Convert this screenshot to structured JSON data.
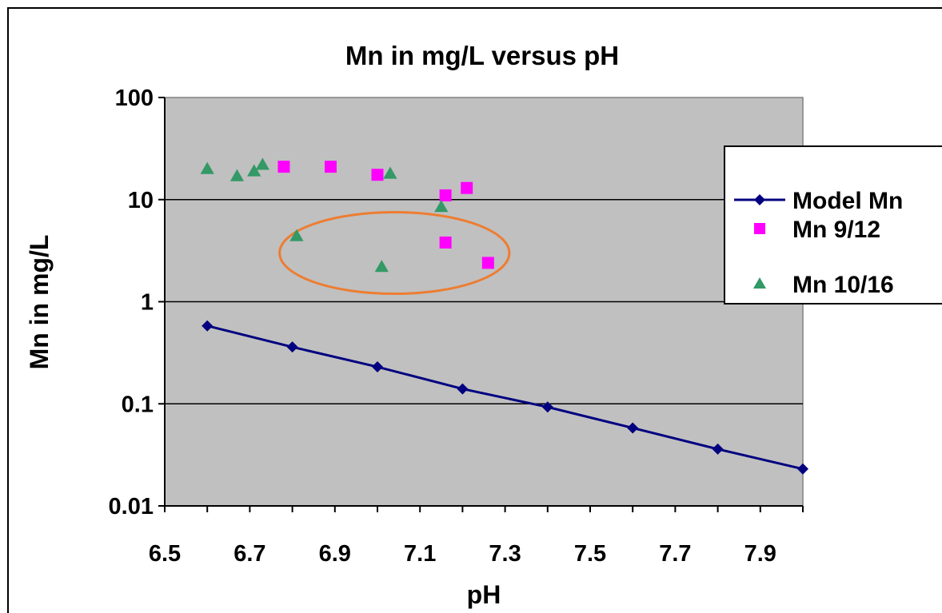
{
  "chart_data": {
    "type": "scatter",
    "title": "Mn in mg/L versus pH",
    "xlabel": "pH",
    "ylabel": "Mn in mg/L",
    "xlim": [
      6.5,
      8.0
    ],
    "ylim": [
      0.01,
      100
    ],
    "y_scale": "log",
    "x_ticks": [
      "6.5",
      "6.7",
      "6.9",
      "7.1",
      "7.3",
      "7.5",
      "7.7",
      "7.9"
    ],
    "x_tick_values": [
      6.5,
      6.7,
      6.9,
      7.1,
      7.3,
      7.5,
      7.7,
      7.9
    ],
    "y_ticks": [
      "0.01",
      "0.1",
      "1",
      "10",
      "100"
    ],
    "y_tick_values": [
      0.01,
      0.1,
      1,
      10,
      100
    ],
    "grid": "horizontal",
    "plot_background": "#c0c0c0",
    "legend_position": "right",
    "series": [
      {
        "name": "Model Mn",
        "marker": "diamond",
        "line": true,
        "color": "#000080",
        "points": [
          [
            6.6,
            0.58
          ],
          [
            6.8,
            0.36
          ],
          [
            7.0,
            0.23
          ],
          [
            7.2,
            0.14
          ],
          [
            7.4,
            0.093
          ],
          [
            7.6,
            0.058
          ],
          [
            7.8,
            0.036
          ],
          [
            8.0,
            0.023
          ]
        ]
      },
      {
        "name": "Mn 9/12",
        "marker": "square",
        "line": false,
        "color": "#ff00ff",
        "points": [
          [
            6.78,
            21
          ],
          [
            6.89,
            21
          ],
          [
            7.0,
            17.5
          ],
          [
            7.16,
            11
          ],
          [
            7.21,
            13
          ],
          [
            7.16,
            3.8
          ],
          [
            7.26,
            2.4
          ]
        ]
      },
      {
        "name": "Mn 10/16",
        "marker": "triangle",
        "line": false,
        "color": "#339966",
        "points": [
          [
            6.6,
            20
          ],
          [
            6.67,
            17
          ],
          [
            6.71,
            19
          ],
          [
            6.73,
            22
          ],
          [
            7.03,
            18
          ],
          [
            7.15,
            8.5
          ],
          [
            6.81,
            4.4
          ],
          [
            7.01,
            2.2
          ]
        ]
      }
    ],
    "annotations": [
      {
        "type": "ellipse",
        "color": "#ed7d31",
        "cx_ph": 7.04,
        "cy_mg": 3.0,
        "rx_ph": 0.27
      }
    ]
  }
}
